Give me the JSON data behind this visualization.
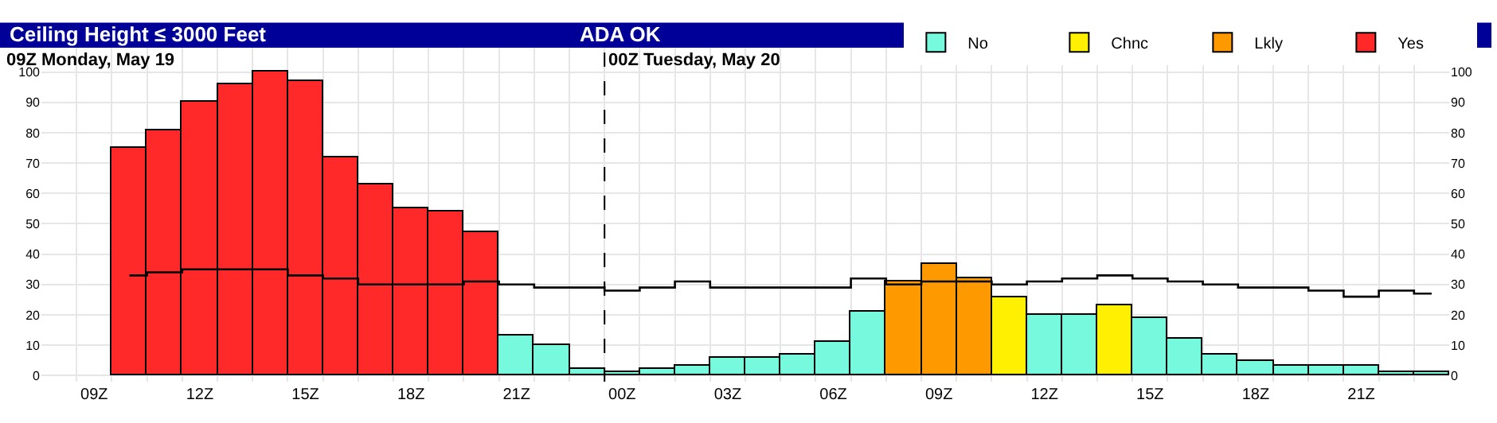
{
  "chart_data": {
    "type": "bar",
    "title": "Ceiling Height ≤ 3000 Feet",
    "subtitle": "ADA OK",
    "annotations": [
      "09Z Monday, May 19"
    ],
    "categories": [
      null,
      "09Z",
      null,
      null,
      "12Z",
      null,
      null,
      "15Z",
      null,
      null,
      "18Z",
      null,
      null,
      "21Z",
      null,
      null,
      "00Z",
      null,
      null,
      "03Z",
      null,
      null,
      "06Z",
      null,
      null,
      "09Z",
      null,
      null,
      "12Z",
      null,
      null,
      "15Z",
      null,
      null,
      "18Z",
      null,
      null,
      "21Z",
      null,
      null
    ],
    "series": [
      {
        "name": "No",
        "color": "#77f9dd",
        "values": [
          null,
          null,
          null,
          null,
          null,
          null,
          null,
          null,
          null,
          null,
          null,
          null,
          null,
          13,
          10,
          2,
          1,
          2,
          3,
          6,
          6,
          7,
          11,
          21,
          null,
          null,
          null,
          null,
          20,
          20,
          null,
          19,
          12,
          7,
          5,
          3,
          3,
          3,
          1,
          1
        ]
      },
      {
        "name": "Chnc",
        "color": "#ffef00",
        "values": [
          null,
          null,
          null,
          null,
          null,
          null,
          null,
          null,
          null,
          null,
          null,
          null,
          null,
          null,
          null,
          null,
          null,
          null,
          null,
          null,
          null,
          null,
          null,
          null,
          null,
          null,
          null,
          26,
          null,
          null,
          23,
          null,
          null,
          null,
          null,
          null,
          null,
          null,
          null,
          null
        ]
      },
      {
        "name": "Lkly",
        "color": "#ff9900",
        "values": [
          null,
          null,
          null,
          null,
          null,
          null,
          null,
          null,
          null,
          null,
          null,
          null,
          null,
          null,
          null,
          null,
          null,
          null,
          null,
          null,
          null,
          null,
          null,
          null,
          31,
          37,
          32,
          null,
          null,
          null,
          null,
          null,
          null,
          null,
          null,
          null,
          null,
          null,
          null,
          null
        ]
      },
      {
        "name": "Yes",
        "color": "#ff2929",
        "values": [
          null,
          null,
          75,
          81,
          90,
          96,
          100,
          97,
          72,
          63,
          55,
          54,
          47,
          null,
          null,
          null,
          null,
          null,
          null,
          null,
          null,
          null,
          null,
          null,
          null,
          null,
          null,
          null,
          null,
          null,
          null,
          null,
          null,
          null,
          null,
          null,
          null,
          null,
          null,
          null
        ]
      },
      {
        "type": "step",
        "color": "#000000",
        "values": [
          null,
          null,
          33,
          34,
          35,
          35,
          35,
          33,
          32,
          30,
          30,
          30,
          31,
          30,
          29,
          29,
          28,
          29,
          31,
          29,
          29,
          29,
          29,
          32,
          30,
          31,
          31,
          30,
          31,
          32,
          33,
          32,
          31,
          30,
          29,
          29,
          28,
          26,
          28,
          27
        ]
      }
    ],
    "ref_lines": [
      {
        "axis": "x",
        "value": "00Z",
        "label": "00Z Tuesday, May 20",
        "color": "#000000",
        "line_style": "dashed"
      }
    ],
    "ylim": [
      -2,
      108
    ],
    "yticks": [
      0,
      10,
      20,
      30,
      40,
      50,
      60,
      70,
      80,
      90,
      100
    ],
    "y2lim": [
      -2,
      108
    ],
    "y2ticks": [
      0,
      10,
      20,
      30,
      40,
      50,
      60,
      70,
      80,
      90,
      100
    ],
    "grid": true,
    "legend": "top right"
  }
}
